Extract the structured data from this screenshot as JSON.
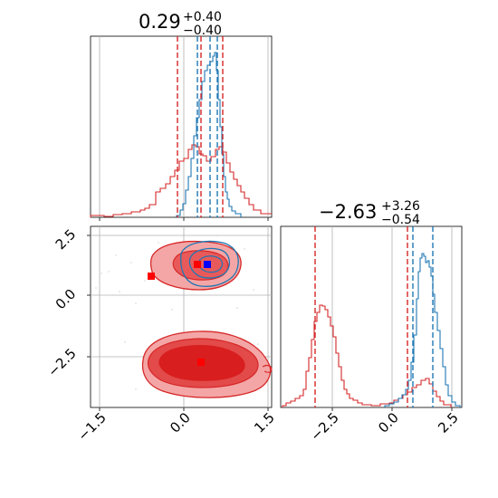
{
  "chart_data": [
    {
      "panel": "top-left",
      "type": "histogram",
      "title_main": "0.29",
      "title_sup": "+0.40",
      "title_sub": "−0.40",
      "xlim": [
        -1.6,
        1.6
      ],
      "xticks": [
        -1.5,
        0.0,
        1.5
      ],
      "grid": true,
      "series": [
        {
          "color": "#d62728",
          "bins": [
            -1.6,
            -1.4,
            -1.2,
            -1.0,
            -0.8,
            -0.6,
            -0.4,
            -0.2,
            0.0,
            0.2,
            0.4,
            0.6,
            0.8,
            1.0,
            1.2,
            1.4,
            1.6
          ],
          "heights": [
            0.0,
            0.01,
            0.02,
            0.03,
            0.06,
            0.12,
            0.2,
            0.33,
            0.42,
            0.45,
            0.43,
            0.3,
            0.18,
            0.09,
            0.04,
            0.02
          ]
        },
        {
          "color": "#1f77b4",
          "bins": [
            0.05,
            0.15,
            0.25,
            0.35,
            0.45,
            0.55,
            0.65,
            0.75,
            0.85,
            0.95,
            1.05
          ],
          "heights": [
            0.02,
            0.1,
            0.3,
            0.55,
            0.8,
            0.92,
            0.85,
            0.45,
            0.15,
            0.05
          ]
        }
      ],
      "quantile_lines": [
        {
          "color": "#d62728",
          "x": [
            -0.1,
            0.29,
            0.69
          ]
        },
        {
          "color": "#1f77b4",
          "x": [
            0.22,
            0.48,
            0.67
          ]
        }
      ]
    },
    {
      "panel": "bottom-left",
      "type": "contour",
      "xlim": [
        -1.6,
        1.6
      ],
      "ylim": [
        -4.2,
        3.2
      ],
      "xticks": [
        -1.5,
        0.0,
        1.5
      ],
      "yticks": [
        2.5,
        0.0,
        -2.5
      ],
      "grid": true,
      "markers": [
        {
          "color": "#ff0000",
          "x": -0.6,
          "y": 0.8
        },
        {
          "color": "#ff0000",
          "x": 0.18,
          "y": 1.3
        },
        {
          "color": "#ff0000",
          "x": 0.3,
          "y": -2.78
        },
        {
          "color": "#0000ff",
          "x": 0.38,
          "y": 1.3
        }
      ]
    },
    {
      "panel": "bottom-right",
      "type": "histogram",
      "title_main": "−2.63",
      "title_sup": "+3.26",
      "title_sub": "−0.54",
      "xlim": [
        -4.5,
        2.9
      ],
      "xticks": [
        -2.5,
        0.0,
        2.5
      ],
      "xtick_labels": [
        "−2.5",
        "0.0",
        "2.5"
      ],
      "grid": true,
      "quantile_lines": [
        {
          "color": "#d62728",
          "x": [
            -3.2,
            0.63
          ]
        },
        {
          "color": "#1f77b4",
          "x": [
            0.72,
            1.55
          ]
        }
      ]
    }
  ],
  "labels": {
    "tick_neg15": "−1.5",
    "tick_00": "0.0",
    "tick_15": "1.5",
    "ytick_25": "2.5",
    "ytick_00": "0.0",
    "ytick_neg25": "−2.5",
    "tick_neg25": "−2.5",
    "tick_25": "2.5"
  },
  "colors": {
    "red": "#d62728",
    "blue": "#1f77b4",
    "light_red": "#f08a8a",
    "mid_red": "#e34a4a",
    "dark_red": "#d81e1e"
  }
}
